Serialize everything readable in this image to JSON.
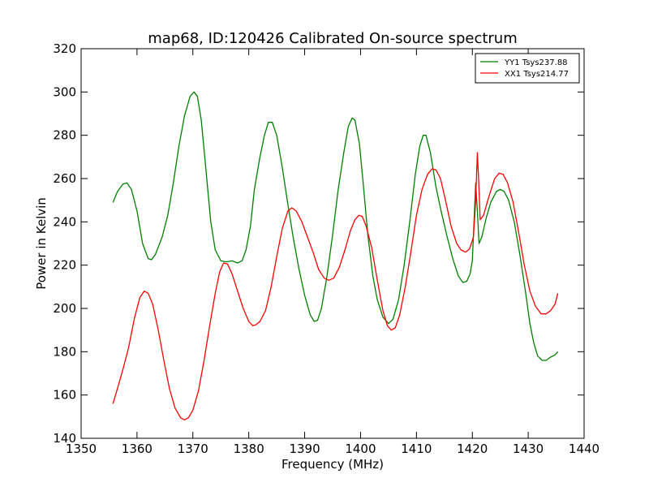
{
  "chart_data": {
    "type": "line",
    "title": "map68, ID:120426 Calibrated On-source spectrum",
    "xlabel": "Frequency (MHz)",
    "ylabel": "Power in Kelvin",
    "xlim": [
      1350,
      1440
    ],
    "ylim": [
      140,
      320
    ],
    "xticks": [
      1350,
      1360,
      1370,
      1380,
      1390,
      1400,
      1410,
      1420,
      1430,
      1440
    ],
    "yticks": [
      140,
      160,
      180,
      200,
      220,
      240,
      260,
      280,
      300,
      320
    ],
    "grid": false,
    "legend_position": "top-right",
    "series": [
      {
        "name": "YY1 Tsys237.88",
        "color": "#008000",
        "points": [
          [
            1355.7,
            249
          ],
          [
            1356.5,
            254
          ],
          [
            1357.5,
            257.5
          ],
          [
            1358.2,
            258
          ],
          [
            1359,
            255
          ],
          [
            1360,
            245
          ],
          [
            1361,
            230
          ],
          [
            1362,
            223
          ],
          [
            1362.6,
            222.5
          ],
          [
            1363.3,
            225
          ],
          [
            1364.5,
            233
          ],
          [
            1365.5,
            243
          ],
          [
            1366.5,
            258
          ],
          [
            1367.5,
            275
          ],
          [
            1368.5,
            289
          ],
          [
            1369.5,
            298
          ],
          [
            1370.2,
            300
          ],
          [
            1370.8,
            298
          ],
          [
            1371.5,
            287
          ],
          [
            1372.3,
            265
          ],
          [
            1373.2,
            240
          ],
          [
            1374,
            227
          ],
          [
            1375,
            222
          ],
          [
            1376,
            221.5
          ],
          [
            1377,
            222
          ],
          [
            1378,
            221
          ],
          [
            1378.8,
            222
          ],
          [
            1379.5,
            227
          ],
          [
            1380.3,
            238
          ],
          [
            1381,
            255
          ],
          [
            1382,
            270
          ],
          [
            1382.8,
            280
          ],
          [
            1383.5,
            286
          ],
          [
            1384.2,
            286
          ],
          [
            1385,
            280
          ],
          [
            1386,
            265
          ],
          [
            1387,
            248
          ],
          [
            1388,
            232
          ],
          [
            1389,
            218
          ],
          [
            1390,
            206
          ],
          [
            1391,
            197
          ],
          [
            1391.7,
            194
          ],
          [
            1392.3,
            194.5
          ],
          [
            1393,
            200
          ],
          [
            1394,
            215
          ],
          [
            1395,
            234
          ],
          [
            1396,
            255
          ],
          [
            1397,
            272
          ],
          [
            1397.8,
            284
          ],
          [
            1398.5,
            288
          ],
          [
            1399,
            287
          ],
          [
            1399.8,
            276
          ],
          [
            1400.5,
            257
          ],
          [
            1401.3,
            234
          ],
          [
            1402.2,
            215
          ],
          [
            1403,
            204
          ],
          [
            1404,
            196
          ],
          [
            1405,
            193
          ],
          [
            1405.8,
            195
          ],
          [
            1406.8,
            204
          ],
          [
            1407.8,
            220
          ],
          [
            1408.8,
            240
          ],
          [
            1409.8,
            262
          ],
          [
            1410.6,
            275
          ],
          [
            1411.2,
            280
          ],
          [
            1411.7,
            280
          ],
          [
            1412.5,
            272
          ],
          [
            1413.5,
            256
          ],
          [
            1414.5,
            244
          ],
          [
            1415.5,
            233
          ],
          [
            1416.5,
            223
          ],
          [
            1417.5,
            215
          ],
          [
            1418.3,
            212
          ],
          [
            1419,
            212.5
          ],
          [
            1419.6,
            216
          ],
          [
            1420,
            222
          ],
          [
            1420.3,
            240
          ],
          [
            1420.6,
            258
          ],
          [
            1420.9,
            245
          ],
          [
            1421.2,
            230
          ],
          [
            1421.7,
            233
          ],
          [
            1422.5,
            242
          ],
          [
            1423.3,
            249
          ],
          [
            1424.3,
            254
          ],
          [
            1425,
            255
          ],
          [
            1425.7,
            254
          ],
          [
            1426.5,
            250
          ],
          [
            1427.5,
            240
          ],
          [
            1428.5,
            225
          ],
          [
            1429.5,
            208
          ],
          [
            1430.3,
            193
          ],
          [
            1431,
            184
          ],
          [
            1431.7,
            178
          ],
          [
            1432.5,
            176
          ],
          [
            1433.2,
            176
          ],
          [
            1434,
            177.5
          ],
          [
            1434.8,
            178.5
          ],
          [
            1435.3,
            180
          ]
        ]
      },
      {
        "name": "XX1 Tsys214.77",
        "color": "#ff0000",
        "points": [
          [
            1355.7,
            156
          ],
          [
            1356.5,
            163
          ],
          [
            1357.5,
            172
          ],
          [
            1358.5,
            182
          ],
          [
            1359.5,
            195
          ],
          [
            1360.5,
            205
          ],
          [
            1361.3,
            208
          ],
          [
            1362,
            207
          ],
          [
            1362.8,
            202
          ],
          [
            1363.8,
            190
          ],
          [
            1364.8,
            176
          ],
          [
            1365.8,
            163
          ],
          [
            1366.8,
            154
          ],
          [
            1367.8,
            149.5
          ],
          [
            1368.5,
            148.5
          ],
          [
            1369.2,
            149.5
          ],
          [
            1370,
            153
          ],
          [
            1371,
            162
          ],
          [
            1372,
            176
          ],
          [
            1373,
            192
          ],
          [
            1374,
            207
          ],
          [
            1374.8,
            217
          ],
          [
            1375.5,
            221
          ],
          [
            1376.2,
            220.5
          ],
          [
            1377,
            216
          ],
          [
            1378,
            208
          ],
          [
            1379,
            200
          ],
          [
            1380,
            194
          ],
          [
            1380.7,
            192
          ],
          [
            1381.3,
            192.5
          ],
          [
            1382,
            194
          ],
          [
            1383,
            199
          ],
          [
            1384,
            210
          ],
          [
            1385,
            224
          ],
          [
            1386,
            237
          ],
          [
            1387,
            245
          ],
          [
            1387.7,
            246.5
          ],
          [
            1388.5,
            245
          ],
          [
            1389.5,
            240
          ],
          [
            1390.5,
            233
          ],
          [
            1391.5,
            226
          ],
          [
            1392.5,
            218
          ],
          [
            1393.5,
            214
          ],
          [
            1394.3,
            213
          ],
          [
            1395.2,
            214
          ],
          [
            1396.2,
            219
          ],
          [
            1397.2,
            227
          ],
          [
            1398.2,
            236
          ],
          [
            1399,
            241
          ],
          [
            1399.7,
            243
          ],
          [
            1400.3,
            242.5
          ],
          [
            1401,
            238
          ],
          [
            1402,
            228
          ],
          [
            1403,
            213
          ],
          [
            1404,
            199
          ],
          [
            1404.8,
            192
          ],
          [
            1405.5,
            190
          ],
          [
            1406.2,
            191
          ],
          [
            1407,
            197
          ],
          [
            1408,
            210
          ],
          [
            1409,
            226
          ],
          [
            1410,
            243
          ],
          [
            1411,
            255
          ],
          [
            1412,
            262
          ],
          [
            1412.8,
            264.5
          ],
          [
            1413.5,
            264
          ],
          [
            1414.3,
            260
          ],
          [
            1415.2,
            250
          ],
          [
            1416.2,
            238
          ],
          [
            1417.2,
            230
          ],
          [
            1418,
            227
          ],
          [
            1418.8,
            226
          ],
          [
            1419.5,
            227.5
          ],
          [
            1420.2,
            233
          ],
          [
            1420.6,
            250
          ],
          [
            1420.9,
            272
          ],
          [
            1421.2,
            255
          ],
          [
            1421.4,
            241
          ],
          [
            1422,
            243
          ],
          [
            1423,
            252
          ],
          [
            1424,
            260
          ],
          [
            1424.8,
            262.5
          ],
          [
            1425.5,
            262
          ],
          [
            1426.3,
            258
          ],
          [
            1427.3,
            249
          ],
          [
            1428.3,
            235
          ],
          [
            1429.3,
            220
          ],
          [
            1430.3,
            208
          ],
          [
            1431.3,
            201
          ],
          [
            1432.3,
            197.5
          ],
          [
            1433.2,
            197.5
          ],
          [
            1434,
            199
          ],
          [
            1434.8,
            202
          ],
          [
            1435.3,
            207
          ]
        ]
      }
    ]
  }
}
